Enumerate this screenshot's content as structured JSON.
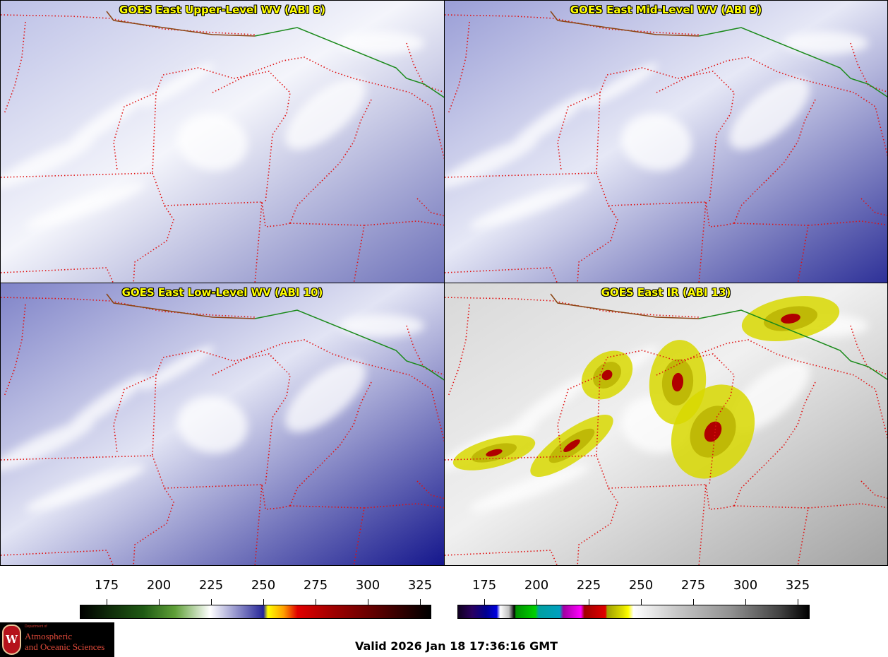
{
  "panels": [
    {
      "title": "GOES East Upper-Level WV (ABI 8)",
      "base": "#bcc0e6",
      "dark": "#6b6fb8",
      "light": "#f4f5fb"
    },
    {
      "title": "GOES East Mid-Level WV (ABI 9)",
      "base": "#9a9ed6",
      "dark": "#2a2d96",
      "light": "#e6e8f6"
    },
    {
      "title": "GOES East Low-Level WV (ABI 10)",
      "base": "#7f83c8",
      "dark": "#10128a",
      "light": "#e2e4f4"
    },
    {
      "title": "GOES East IR (ABI 13)",
      "base": "#d8d8d8",
      "dark": "#a0a0a0",
      "light": "#f0f0f0"
    }
  ],
  "colorbars": [
    {
      "ticks": [
        "175",
        "200",
        "225",
        "250",
        "275",
        "300",
        "325"
      ]
    },
    {
      "ticks": [
        "175",
        "200",
        "225",
        "250",
        "275",
        "300",
        "325"
      ]
    }
  ],
  "valid_text": "Valid 2026 Jan 18 17:36:16 GMT",
  "logo": {
    "dept": "Department of",
    "line1": "Atmospheric",
    "line2": "and Oceanic Sciences",
    "letter": "W"
  },
  "colors": {
    "border_state": "#e01010",
    "border_country": "#1a8a1a",
    "coast": "#8b4513",
    "title": "#ffff00"
  }
}
